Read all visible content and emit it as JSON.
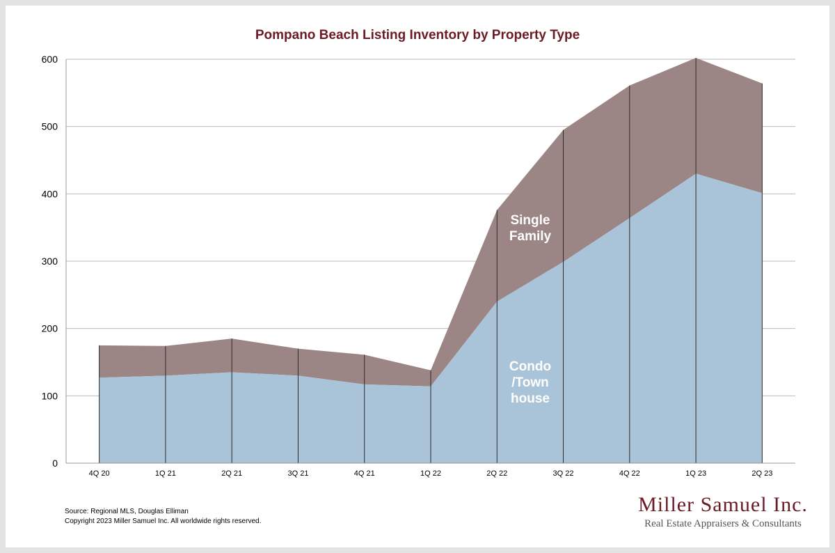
{
  "chart_data": {
    "type": "area",
    "stacked": true,
    "title": "Pompano Beach Listing Inventory by Property Type",
    "categories": [
      "4Q 20",
      "1Q 21",
      "2Q 21",
      "3Q 21",
      "4Q 21",
      "1Q 22",
      "2Q 22",
      "3Q 22",
      "4Q 22",
      "1Q 23",
      "2Q 23"
    ],
    "series": [
      {
        "name": "Condo /Town house",
        "label_lines": [
          "Condo",
          "/Town",
          "house"
        ],
        "color": "#a9c4d8",
        "values": [
          127,
          130,
          135,
          130,
          117,
          114,
          240,
          299,
          364,
          430,
          401
        ]
      },
      {
        "name": "Single Family",
        "label_lines": [
          "Single",
          "Family"
        ],
        "color": "#9c8585",
        "values": [
          48,
          44,
          50,
          40,
          44,
          24,
          136,
          196,
          197,
          172,
          163
        ]
      }
    ],
    "totals": [
      175,
      174,
      185,
      170,
      161,
      138,
      376,
      495,
      561,
      602,
      564
    ],
    "ylim": [
      0,
      600
    ],
    "yticks": [
      0,
      100,
      200,
      300,
      400,
      500,
      600
    ],
    "grid": true,
    "xlabel": "",
    "ylabel": ""
  },
  "footer": {
    "source": "Source: Regional MLS, Douglas Elliman",
    "copyright": "Copyright 2023 Miller Samuel Inc.  All worldwide rights reserved."
  },
  "logo": {
    "name": "Miller Samuel Inc.",
    "tagline": "Real Estate Appraisers & Consultants"
  }
}
